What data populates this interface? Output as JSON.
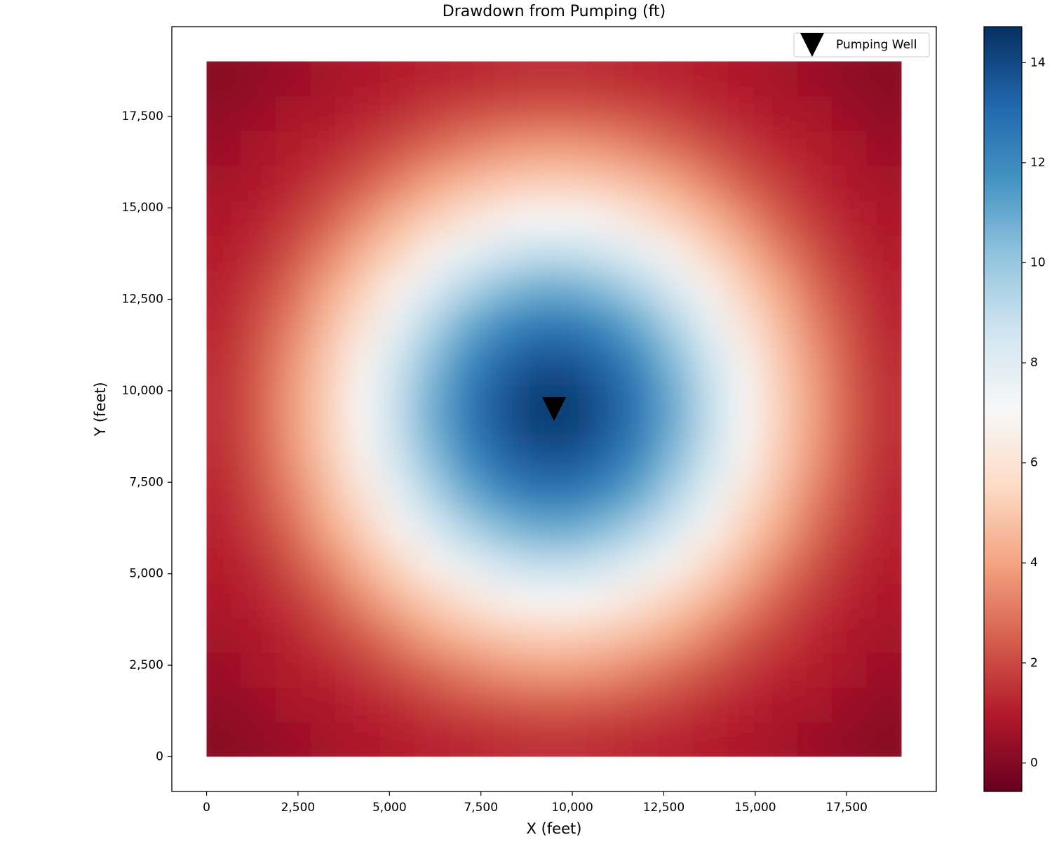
{
  "chart_data": {
    "type": "heatmap",
    "title": "Drawdown from Pumping (ft)",
    "xlabel": "X (feet)",
    "ylabel": "Y (feet)",
    "colormap": "RdBu",
    "vmin": -0.57,
    "vmax": 14.72,
    "x": [
      475,
      1425,
      2375,
      3325,
      4275,
      5225,
      6175,
      7125,
      8075,
      9025,
      9975,
      10925,
      11875,
      12825,
      13775,
      14725,
      15675,
      16625,
      17575,
      18525
    ],
    "y": [
      475,
      1425,
      2375,
      3325,
      4275,
      5225,
      6175,
      7125,
      8075,
      9025,
      9975,
      10925,
      11875,
      12825,
      13775,
      14725,
      15675,
      16625,
      17575,
      18525
    ],
    "z": [
      [
        0.1,
        0.3,
        0.5,
        0.7,
        0.9,
        1.0,
        1.2,
        1.3,
        1.4,
        1.5,
        1.5,
        1.4,
        1.3,
        1.2,
        1.0,
        0.9,
        0.7,
        0.5,
        0.3,
        0.1
      ],
      [
        0.3,
        0.5,
        0.8,
        0.9,
        1.2,
        1.4,
        1.8,
        2.1,
        2.3,
        2.4,
        2.4,
        2.3,
        2.1,
        1.8,
        1.4,
        1.2,
        0.9,
        0.8,
        0.5,
        0.3
      ],
      [
        0.5,
        0.8,
        1.0,
        1.3,
        1.7,
        2.2,
        2.7,
        3.2,
        3.6,
        3.8,
        3.8,
        3.6,
        3.2,
        2.7,
        2.2,
        1.7,
        1.3,
        1.0,
        0.8,
        0.5
      ],
      [
        0.7,
        0.9,
        1.3,
        1.8,
        2.4,
        3.2,
        4.0,
        4.6,
        5.0,
        5.2,
        5.2,
        5.0,
        4.6,
        4.0,
        3.2,
        2.4,
        1.8,
        1.3,
        0.9,
        0.7
      ],
      [
        0.9,
        1.2,
        1.7,
        2.4,
        3.4,
        4.4,
        5.2,
        6.0,
        6.7,
        7.0,
        7.0,
        6.7,
        6.0,
        5.2,
        4.4,
        3.4,
        2.4,
        1.7,
        1.2,
        0.9
      ],
      [
        1.0,
        1.4,
        2.2,
        3.2,
        4.4,
        5.4,
        6.7,
        7.7,
        8.5,
        8.9,
        8.9,
        8.5,
        7.7,
        6.7,
        5.4,
        4.4,
        3.2,
        2.2,
        1.4,
        1.0
      ],
      [
        1.2,
        1.8,
        2.7,
        4.0,
        5.2,
        6.7,
        8.1,
        9.3,
        10.3,
        10.8,
        10.8,
        10.3,
        9.3,
        8.1,
        6.7,
        5.2,
        4.0,
        2.7,
        1.8,
        1.2
      ],
      [
        1.3,
        2.1,
        3.2,
        4.6,
        6.0,
        7.7,
        9.3,
        10.8,
        11.8,
        12.4,
        12.4,
        11.8,
        10.8,
        9.3,
        7.7,
        6.0,
        4.6,
        3.2,
        2.1,
        1.3
      ],
      [
        1.4,
        2.3,
        3.6,
        5.0,
        6.7,
        8.5,
        10.3,
        11.8,
        13.0,
        13.6,
        13.6,
        13.0,
        11.8,
        10.3,
        8.5,
        6.7,
        5.0,
        3.6,
        2.3,
        1.4
      ],
      [
        1.5,
        2.4,
        3.8,
        5.2,
        7.0,
        8.9,
        10.8,
        12.4,
        13.6,
        14.3,
        14.3,
        13.6,
        12.4,
        10.8,
        8.9,
        7.0,
        5.2,
        3.8,
        2.4,
        1.5
      ],
      [
        1.5,
        2.4,
        3.8,
        5.2,
        7.0,
        8.9,
        10.8,
        12.4,
        13.6,
        14.3,
        14.3,
        13.6,
        12.4,
        10.8,
        8.9,
        7.0,
        5.2,
        3.8,
        2.4,
        1.5
      ],
      [
        1.4,
        2.3,
        3.6,
        5.0,
        6.7,
        8.5,
        10.3,
        11.8,
        13.0,
        13.6,
        13.6,
        13.0,
        11.8,
        10.3,
        8.5,
        6.7,
        5.0,
        3.6,
        2.3,
        1.4
      ],
      [
        1.3,
        2.1,
        3.2,
        4.6,
        6.0,
        7.7,
        9.3,
        10.8,
        11.8,
        12.4,
        12.4,
        11.8,
        10.8,
        9.3,
        7.7,
        6.0,
        4.6,
        3.2,
        2.1,
        1.3
      ],
      [
        1.2,
        1.8,
        2.7,
        4.0,
        5.2,
        6.7,
        8.1,
        9.3,
        10.3,
        10.8,
        10.8,
        10.3,
        9.3,
        8.1,
        6.7,
        5.2,
        4.0,
        2.7,
        1.8,
        1.2
      ],
      [
        1.0,
        1.4,
        2.2,
        3.2,
        4.4,
        5.4,
        6.7,
        7.7,
        8.5,
        8.9,
        8.9,
        8.5,
        7.7,
        6.7,
        5.4,
        4.4,
        3.2,
        2.2,
        1.4,
        1.0
      ],
      [
        0.9,
        1.2,
        1.7,
        2.4,
        3.4,
        4.4,
        5.2,
        6.0,
        6.7,
        7.0,
        7.0,
        6.7,
        6.0,
        5.2,
        4.4,
        3.4,
        2.4,
        1.7,
        1.2,
        0.9
      ],
      [
        0.7,
        0.9,
        1.3,
        1.8,
        2.4,
        3.2,
        4.0,
        4.6,
        5.0,
        5.2,
        5.2,
        5.0,
        4.6,
        4.0,
        3.2,
        2.4,
        1.8,
        1.3,
        0.9,
        0.7
      ],
      [
        0.5,
        0.8,
        1.0,
        1.3,
        1.7,
        2.2,
        2.7,
        3.2,
        3.6,
        3.8,
        3.8,
        3.6,
        3.2,
        2.7,
        2.2,
        1.7,
        1.3,
        1.0,
        0.8,
        0.5
      ],
      [
        0.3,
        0.5,
        0.8,
        0.9,
        1.2,
        1.4,
        1.8,
        2.1,
        2.3,
        2.4,
        2.4,
        2.3,
        2.1,
        1.8,
        1.4,
        1.2,
        0.9,
        0.8,
        0.5,
        0.3
      ],
      [
        0.1,
        0.3,
        0.5,
        0.7,
        0.9,
        1.0,
        1.2,
        1.3,
        1.4,
        1.5,
        1.5,
        1.4,
        1.3,
        1.2,
        1.0,
        0.9,
        0.7,
        0.5,
        0.3,
        0.1
      ]
    ],
    "well": {
      "name": "Pumping Well",
      "x": 9500,
      "y": 9500,
      "color": "#000000"
    },
    "xlim": [
      -950,
      19950
    ],
    "ylim": [
      -950,
      19950
    ],
    "xticks": [
      0,
      {
        "value": 2500,
        "label": "2,500"
      },
      {
        "value": 5000,
        "label": "5,000"
      },
      {
        "value": 7500,
        "label": "7,500"
      },
      {
        "value": 10000,
        "label": "10,000"
      },
      {
        "value": 12500,
        "label": "12,500"
      },
      {
        "value": 15000,
        "label": "15,000"
      },
      {
        "value": 17500,
        "label": "17,500"
      }
    ],
    "yticks": [
      0,
      {
        "value": 2500,
        "label": "2,500"
      },
      {
        "value": 5000,
        "label": "5,000"
      },
      {
        "value": 7500,
        "label": "7,500"
      },
      {
        "value": 10000,
        "label": "10,000"
      },
      {
        "value": 12500,
        "label": "12,500"
      },
      {
        "value": 15000,
        "label": "15,000"
      },
      {
        "value": 17500,
        "label": "17,500"
      }
    ],
    "cbticks": [
      0,
      2,
      4,
      6,
      8,
      10,
      12,
      14
    ],
    "legend": "upper right"
  }
}
